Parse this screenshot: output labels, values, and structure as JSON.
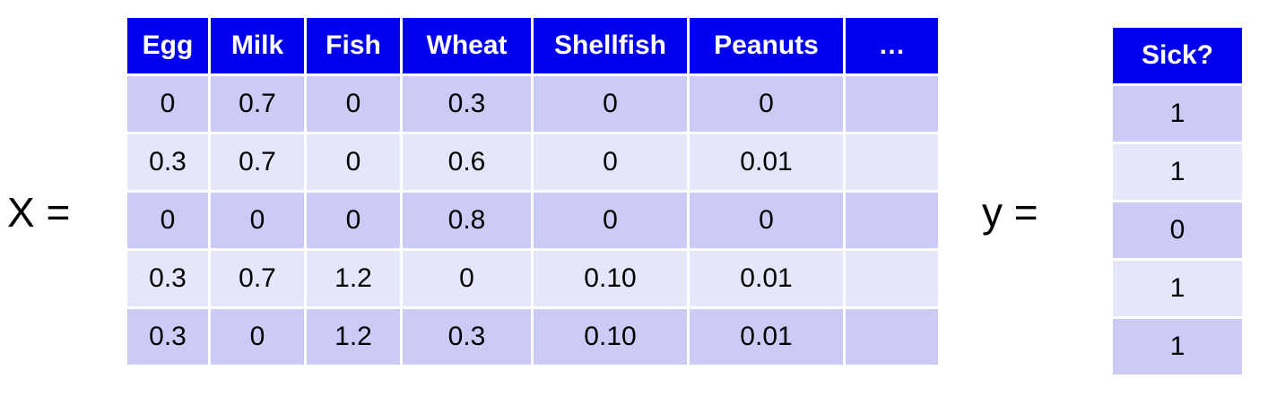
{
  "x_label": "X =",
  "y_label": "y =",
  "features": {
    "headers": [
      "Egg",
      "Milk",
      "Fish",
      "Wheat",
      "Shellfish",
      "Peanuts",
      "…"
    ],
    "rows": [
      [
        "0",
        "0.7",
        "0",
        "0.3",
        "0",
        "0",
        ""
      ],
      [
        "0.3",
        "0.7",
        "0",
        "0.6",
        "0",
        "0.01",
        ""
      ],
      [
        "0",
        "0",
        "0",
        "0.8",
        "0",
        "0",
        ""
      ],
      [
        "0.3",
        "0.7",
        "1.2",
        "0",
        "0.10",
        "0.01",
        ""
      ],
      [
        "0.3",
        "0",
        "1.2",
        "0.3",
        "0.10",
        "0.01",
        ""
      ]
    ]
  },
  "target": {
    "header": "Sick?",
    "values": [
      "1",
      "1",
      "0",
      "1",
      "1"
    ]
  },
  "colors": {
    "header_bg": "#0000ee",
    "header_text": "#ffffff",
    "row_dark": "#cbcbf6",
    "row_light": "#e6e6fb"
  }
}
